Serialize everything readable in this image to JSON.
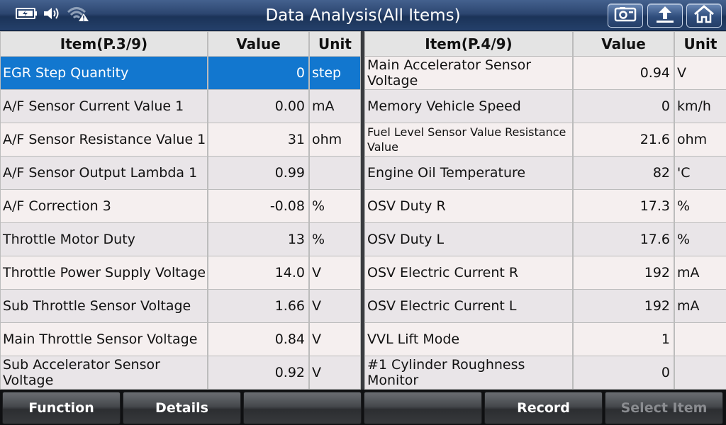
{
  "header": {
    "title": "Data Analysis(All Items)",
    "status_icons": [
      "battery-icon",
      "speaker-icon",
      "wifi-warning-icon"
    ],
    "buttons": [
      "screenshot-icon",
      "back-icon",
      "home-icon"
    ]
  },
  "left_table": {
    "headers": {
      "item": "Item(P.3/9)",
      "value": "Value",
      "unit": "Unit"
    },
    "rows": [
      {
        "name": "EGR Step Quantity",
        "value": "0",
        "unit": "step"
      },
      {
        "name": "A/F Sensor Current Value 1",
        "value": "0.00",
        "unit": "mA"
      },
      {
        "name": "A/F Sensor Resistance Value 1",
        "value": "31",
        "unit": "ohm"
      },
      {
        "name": "A/F Sensor Output Lambda 1",
        "value": "0.99",
        "unit": ""
      },
      {
        "name": "A/F Correction 3",
        "value": "-0.08",
        "unit": "%"
      },
      {
        "name": "Throttle Motor Duty",
        "value": "13",
        "unit": "%"
      },
      {
        "name": "Throttle Power Supply Voltage",
        "value": "14.0",
        "unit": "V"
      },
      {
        "name": "Sub Throttle Sensor Voltage",
        "value": "1.66",
        "unit": "V"
      },
      {
        "name": "Main Throttle Sensor Voltage",
        "value": "0.84",
        "unit": "V"
      },
      {
        "name": "Sub Accelerator Sensor Voltage",
        "value": "0.92",
        "unit": "V"
      }
    ]
  },
  "right_table": {
    "headers": {
      "item": "Item(P.4/9)",
      "value": "Value",
      "unit": "Unit"
    },
    "rows": [
      {
        "name": "Main Accelerator Sensor Voltage",
        "value": "0.94",
        "unit": "V"
      },
      {
        "name": "Memory Vehicle Speed",
        "value": "0",
        "unit": "km/h"
      },
      {
        "name": "Fuel Level Sensor Value Resistance Value",
        "value": "21.6",
        "unit": "ohm"
      },
      {
        "name": "Engine Oil Temperature",
        "value": "82",
        "unit": "'C"
      },
      {
        "name": "OSV Duty R",
        "value": "17.3",
        "unit": "%"
      },
      {
        "name": "OSV Duty L",
        "value": "17.6",
        "unit": "%"
      },
      {
        "name": "OSV Electric Current R",
        "value": "192",
        "unit": "mA"
      },
      {
        "name": "OSV Electric Current L",
        "value": "192",
        "unit": "mA"
      },
      {
        "name": "VVL Lift Mode",
        "value": "1",
        "unit": ""
      },
      {
        "name": "#1 Cylinder Roughness Monitor",
        "value": "0",
        "unit": ""
      }
    ]
  },
  "footer": {
    "buttons": [
      {
        "label": "Function",
        "enabled": true
      },
      {
        "label": "Details",
        "enabled": true
      },
      {
        "label": "",
        "enabled": true
      },
      {
        "label": "",
        "enabled": true
      },
      {
        "label": "Record",
        "enabled": true
      },
      {
        "label": "Select Item",
        "enabled": false
      }
    ]
  },
  "colors": {
    "selected_row": "#1277cf",
    "row_light": "#f5efef",
    "row_dark": "#e9e5e8",
    "title_bar": "#2c4670"
  }
}
